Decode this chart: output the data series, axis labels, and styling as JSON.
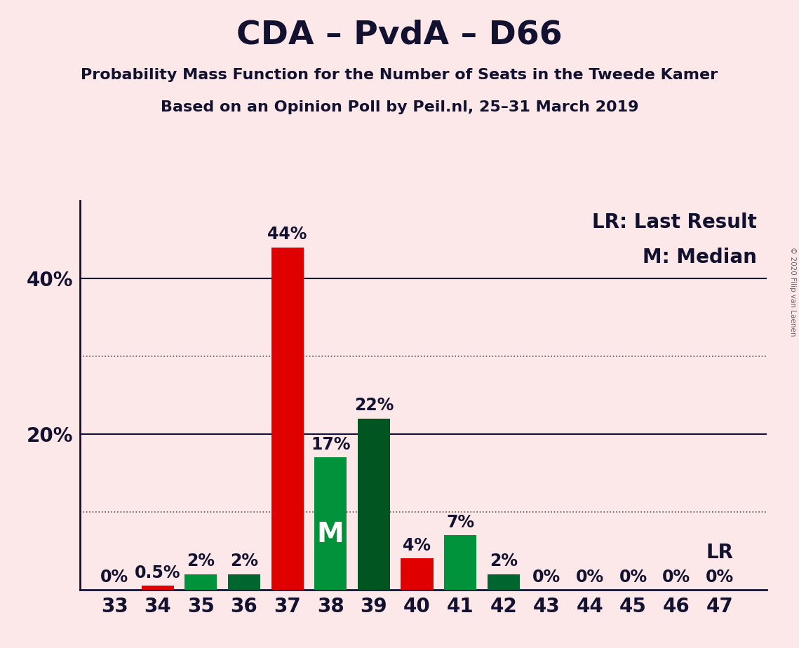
{
  "title": "CDA – PvdA – D66",
  "subtitle1": "Probability Mass Function for the Number of Seats in the Tweede Kamer",
  "subtitle2": "Based on an Opinion Poll by Peil.nl, 25–31 March 2019",
  "copyright": "© 2020 Filip van Laenen",
  "seats": [
    33,
    34,
    35,
    36,
    37,
    38,
    39,
    40,
    41,
    42,
    43,
    44,
    45,
    46,
    47
  ],
  "probabilities": [
    0,
    0.5,
    2,
    2,
    44,
    17,
    22,
    4,
    7,
    2,
    0,
    0,
    0,
    0,
    0
  ],
  "bar_colors": [
    "none",
    "#e00000",
    "#00933b",
    "#006630",
    "#e00000",
    "#00933b",
    "#005520",
    "#e00000",
    "#00933b",
    "#006630",
    "none",
    "none",
    "none",
    "none",
    "none"
  ],
  "median_seat": 38,
  "last_result_seat": 47,
  "background_color": "#fce8e8",
  "ylim": [
    0,
    50
  ],
  "dotted_yticks": [
    10,
    30
  ],
  "solid_yticks": [
    20,
    40
  ],
  "legend_lr": "LR: Last Result",
  "legend_m": "M: Median",
  "label_lr": "LR",
  "label_m": "M",
  "title_fontsize": 34,
  "subtitle_fontsize": 16,
  "axis_fontsize": 20,
  "bar_label_fontsize": 17,
  "legend_fontsize": 20,
  "text_color": "#121230",
  "spine_color": "#121230",
  "grid_color": "#555555"
}
